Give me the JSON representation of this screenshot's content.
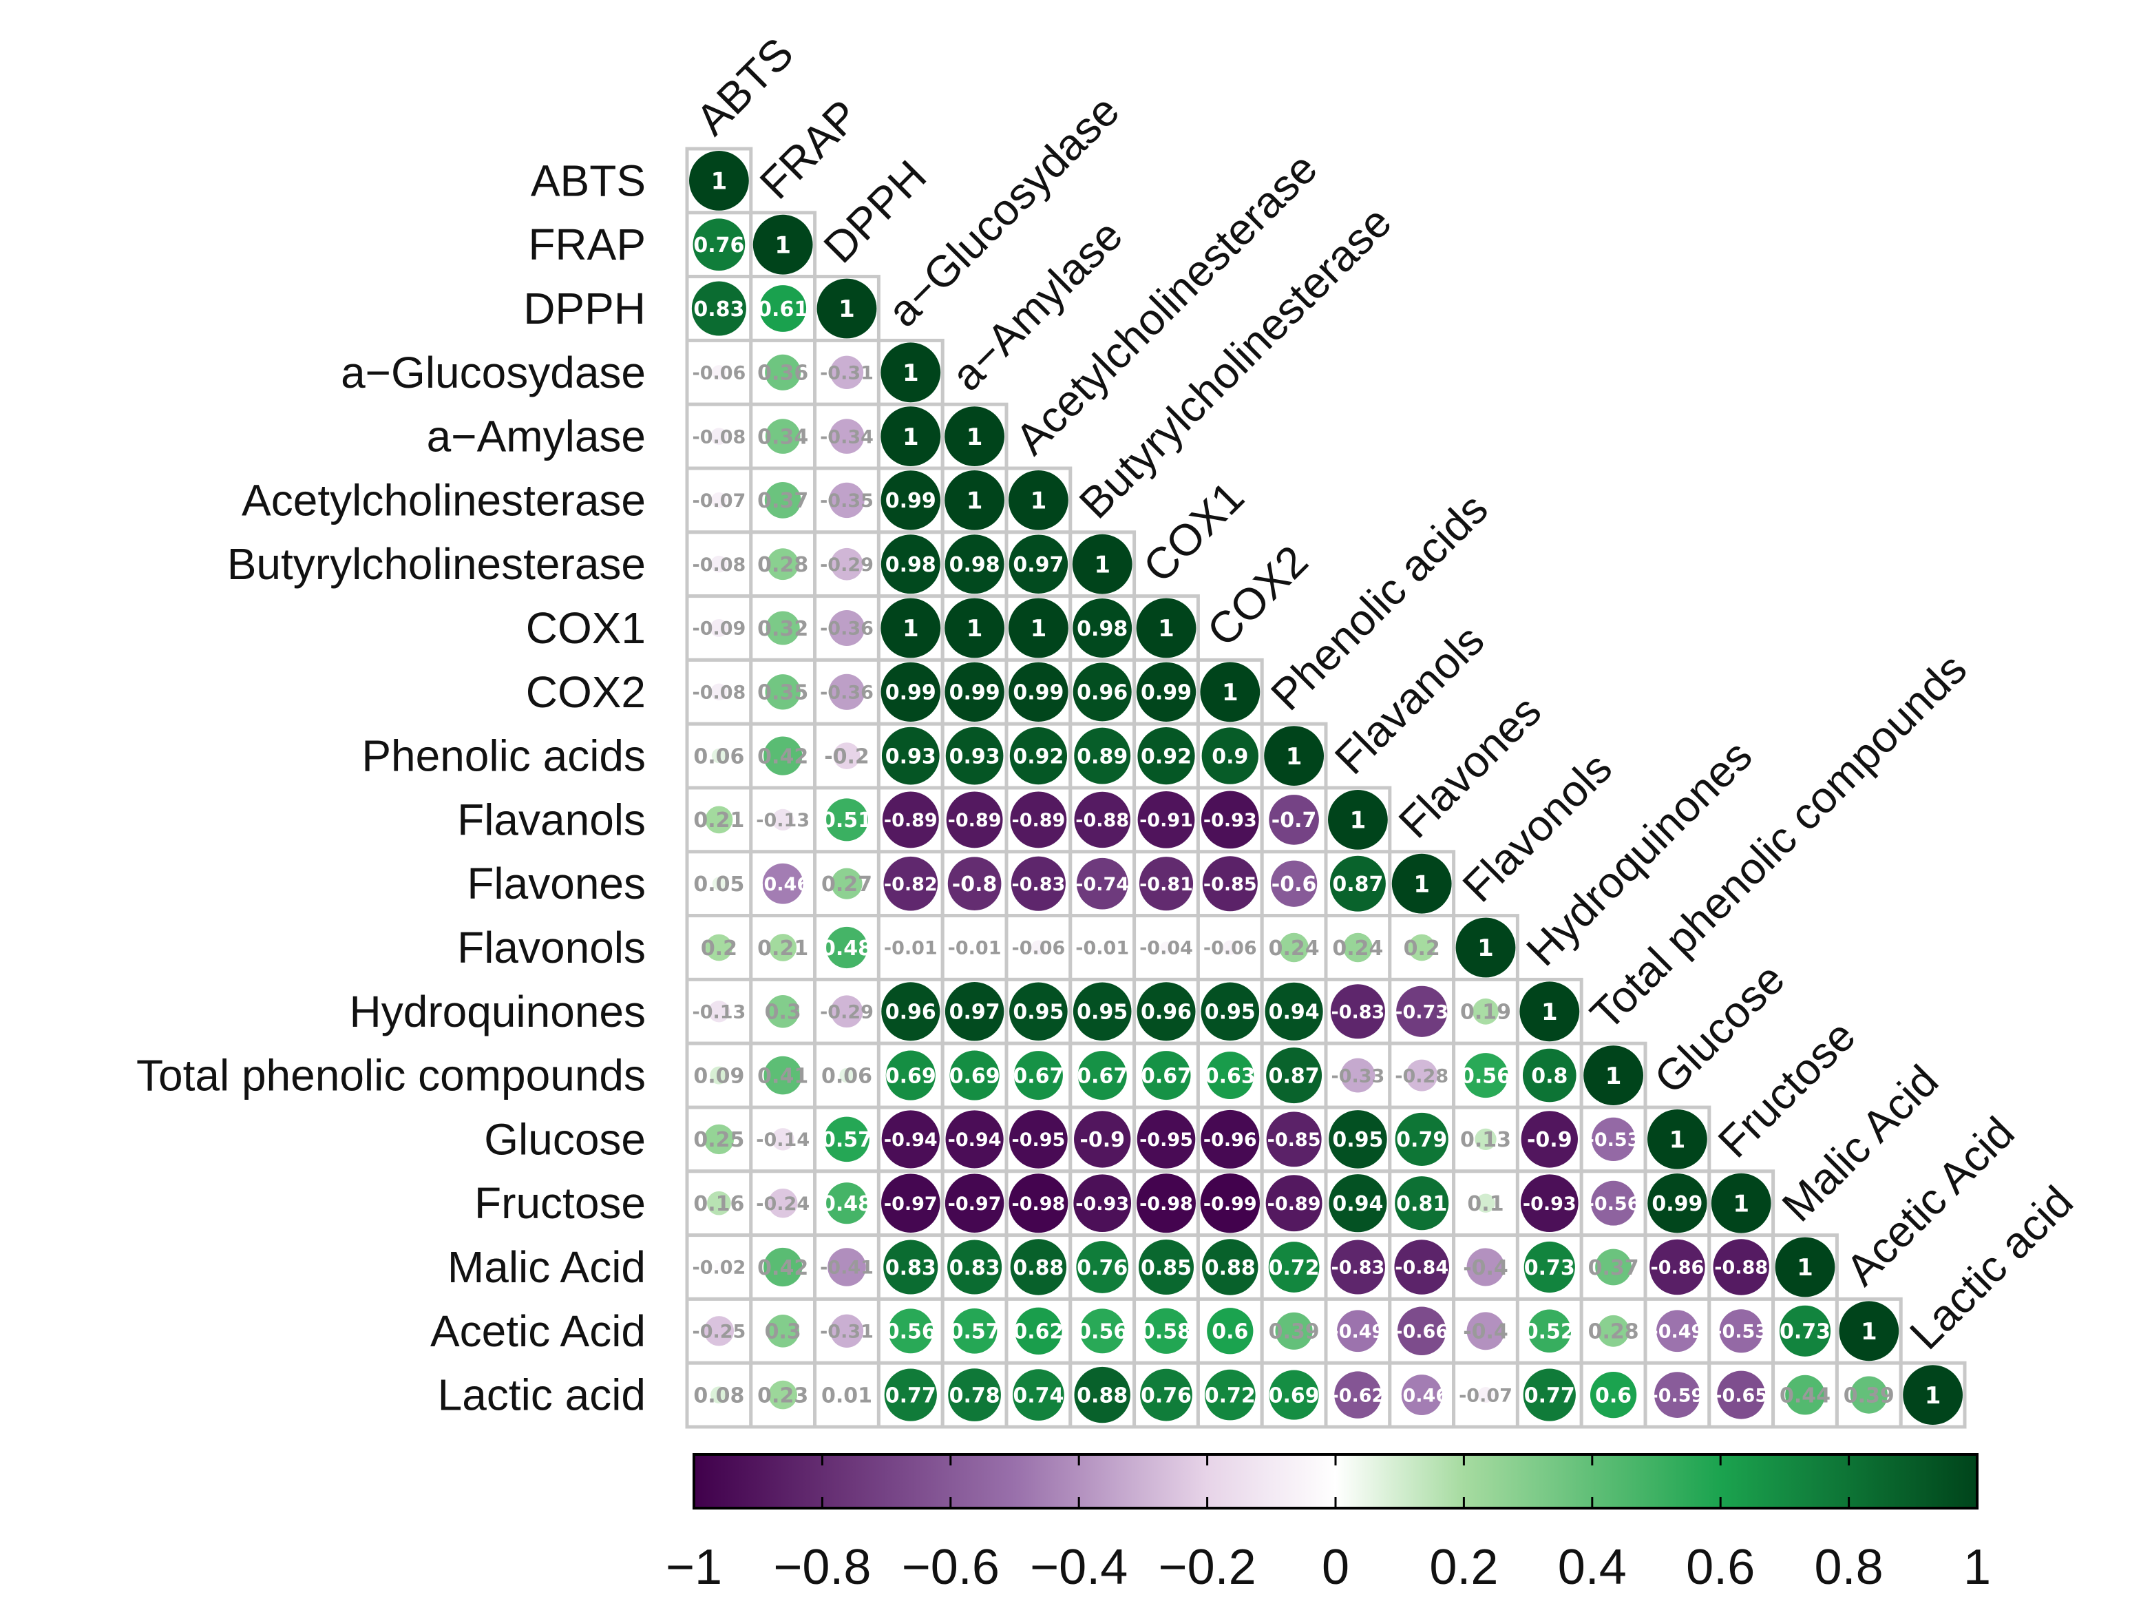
{
  "chart_data": {
    "type": "heatmap",
    "subtype": "correlation-matrix-lower-triangle",
    "variables": [
      "ABTS",
      "FRAP",
      "DPPH",
      "a−Glucosydase",
      "a−Amylase",
      "Acetylcholinesterase",
      "Butyrylcholinesterase",
      "COX1",
      "COX2",
      "Phenolic acids",
      "Flavanols",
      "Flavones",
      "Flavonols",
      "Hydroquinones",
      "Total phenolic compounds",
      "Glucose",
      "Fructose",
      "Malic Acid",
      "Acetic Acid",
      "Lactic acid"
    ],
    "lower_triangle": [
      [
        1
      ],
      [
        0.76,
        1
      ],
      [
        0.83,
        0.61,
        1
      ],
      [
        -0.06,
        0.36,
        -0.31,
        1
      ],
      [
        -0.08,
        0.34,
        -0.34,
        1,
        1
      ],
      [
        -0.07,
        0.37,
        -0.35,
        0.99,
        1,
        1
      ],
      [
        -0.08,
        0.28,
        -0.29,
        0.98,
        0.98,
        0.97,
        1
      ],
      [
        -0.09,
        0.32,
        -0.36,
        1,
        1,
        1,
        0.98,
        1
      ],
      [
        -0.08,
        0.35,
        -0.36,
        0.99,
        0.99,
        0.99,
        0.96,
        0.99,
        1
      ],
      [
        0.06,
        0.42,
        -0.2,
        0.93,
        0.93,
        0.92,
        0.89,
        0.92,
        0.9,
        1
      ],
      [
        0.21,
        -0.13,
        0.51,
        -0.89,
        -0.89,
        -0.89,
        -0.88,
        -0.91,
        -0.93,
        -0.7,
        1
      ],
      [
        0.05,
        -0.46,
        0.27,
        -0.82,
        -0.8,
        -0.83,
        -0.74,
        -0.81,
        -0.85,
        -0.6,
        0.87,
        1
      ],
      [
        0.2,
        0.21,
        0.48,
        -0.01,
        -0.01,
        -0.06,
        -0.01,
        -0.04,
        -0.06,
        0.24,
        0.24,
        0.2,
        1
      ],
      [
        -0.13,
        0.3,
        -0.29,
        0.96,
        0.97,
        0.95,
        0.95,
        0.96,
        0.95,
        0.94,
        -0.83,
        -0.73,
        0.19,
        1
      ],
      [
        0.09,
        0.41,
        0.06,
        0.69,
        0.69,
        0.67,
        0.67,
        0.67,
        0.63,
        0.87,
        -0.33,
        -0.28,
        0.56,
        0.8,
        1
      ],
      [
        0.25,
        -0.14,
        0.57,
        -0.94,
        -0.94,
        -0.95,
        -0.9,
        -0.95,
        -0.96,
        -0.85,
        0.95,
        0.79,
        0.13,
        -0.9,
        -0.53,
        1
      ],
      [
        0.16,
        -0.24,
        0.48,
        -0.97,
        -0.97,
        -0.98,
        -0.93,
        -0.98,
        -0.99,
        -0.89,
        0.94,
        0.81,
        0.1,
        -0.93,
        -0.56,
        0.99,
        1
      ],
      [
        -0.02,
        0.42,
        -0.41,
        0.83,
        0.83,
        0.88,
        0.76,
        0.85,
        0.88,
        0.72,
        -0.83,
        -0.84,
        -0.4,
        0.73,
        0.37,
        -0.86,
        -0.88,
        1
      ],
      [
        -0.25,
        0.3,
        -0.31,
        0.56,
        0.57,
        0.62,
        0.56,
        0.58,
        0.6,
        0.39,
        -0.49,
        -0.66,
        -0.4,
        0.52,
        0.28,
        -0.49,
        -0.53,
        0.73,
        1
      ],
      [
        0.08,
        0.23,
        0.01,
        0.77,
        0.78,
        0.74,
        0.88,
        0.76,
        0.72,
        0.69,
        -0.62,
        -0.46,
        -0.07,
        0.77,
        0.6,
        -0.59,
        -0.65,
        0.44,
        0.39,
        1
      ]
    ],
    "value_labels": [
      [
        "1"
      ],
      [
        "0.76",
        "1"
      ],
      [
        "0.83",
        "0.61",
        "1"
      ],
      [
        "-0.06",
        "0.36",
        "-0.31",
        "1"
      ],
      [
        "-0.08",
        "0.34",
        "-0.34",
        "1",
        "1"
      ],
      [
        "-0.07",
        "0.37",
        "-0.35",
        "0.99",
        "1",
        "1"
      ],
      [
        "-0.08",
        "0.28",
        "-0.29",
        "0.98",
        "0.98",
        "0.97",
        "1"
      ],
      [
        "-0.09",
        "0.32",
        "-0.36",
        "1",
        "1",
        "1",
        "0.98",
        "1"
      ],
      [
        "-0.08",
        "0.35",
        "-0.36",
        "0.99",
        "0.99",
        "0.99",
        "0.96",
        "0.99",
        "1"
      ],
      [
        "0.06",
        "0.42",
        "-0.2",
        "0.93",
        "0.93",
        "0.92",
        "0.89",
        "0.92",
        "0.9",
        "1"
      ],
      [
        "0.21",
        "-0.13",
        "0.51",
        "-0.89",
        "-0.89",
        "-0.89",
        "-0.88",
        "-0.91",
        "-0.93",
        "-0.7",
        "1"
      ],
      [
        "0.05",
        "-0.46",
        "0.27",
        "-0.82",
        "-0.8",
        "-0.83",
        "-0.74",
        "-0.81",
        "-0.85",
        "-0.6",
        "0.87",
        "1"
      ],
      [
        "0.2",
        "0.21",
        "0.48",
        "-0.01",
        "-0.01",
        "-0.06",
        "-0.01",
        "-0.04",
        "-0.06",
        "0.24",
        "0.24",
        "0.2",
        "1"
      ],
      [
        "-0.13",
        "0.3",
        "-0.29",
        "0.96",
        "0.97",
        "0.95",
        "0.95",
        "0.96",
        "0.95",
        "0.94",
        "-0.83",
        "-0.73",
        "0.19",
        "1"
      ],
      [
        "0.09",
        "0.41",
        "0.06",
        "0.69",
        "0.69",
        "0.67",
        "0.67",
        "0.67",
        "0.63",
        "0.87",
        "-0.33",
        "-0.28",
        "0.56",
        "0.8",
        "1"
      ],
      [
        "0.25",
        "-0.14",
        "0.57",
        "-0.94",
        "-0.94",
        "-0.95",
        "-0.9",
        "-0.95",
        "-0.96",
        "-0.85",
        "0.95",
        "0.79",
        "0.13",
        "-0.9",
        "-0.53",
        "1"
      ],
      [
        "0.16",
        "-0.24",
        "0.48",
        "-0.97",
        "-0.97",
        "-0.98",
        "-0.93",
        "-0.98",
        "-0.99",
        "-0.89",
        "0.94",
        "0.81",
        "0.1",
        "-0.93",
        "-0.56",
        "0.99",
        "1"
      ],
      [
        "-0.02",
        "0.42",
        "-0.41",
        "0.83",
        "0.83",
        "0.88",
        "0.76",
        "0.85",
        "0.88",
        "0.72",
        "-0.83",
        "-0.84",
        "-0.4",
        "0.73",
        "0.37",
        "-0.86",
        "-0.88",
        "1"
      ],
      [
        "-0.25",
        "0.3",
        "-0.31",
        "0.56",
        "0.57",
        "0.62",
        "0.56",
        "0.58",
        "0.6",
        "0.39",
        "-0.49",
        "-0.66",
        "-0.4",
        "0.52",
        "0.28",
        "-0.49",
        "-0.53",
        "0.73",
        "1"
      ],
      [
        "0.08",
        "0.23",
        "0.01",
        "0.77",
        "0.78",
        "0.74",
        "0.88",
        "0.76",
        "0.72",
        "0.69",
        "-0.62",
        "-0.46",
        "-0.07",
        "0.77",
        "0.6",
        "-0.59",
        "-0.65",
        "0.44",
        "0.39",
        "1"
      ]
    ],
    "colorbar": {
      "range": [
        -1,
        1
      ],
      "tick_values": [
        -1,
        -0.8,
        -0.6,
        -0.4,
        -0.2,
        0,
        0.2,
        0.4,
        0.6,
        0.8,
        1
      ],
      "tick_labels": [
        "−1",
        "−0.8",
        "−0.6",
        "−0.4",
        "−0.2",
        "0",
        "0.2",
        "0.4",
        "0.6",
        "0.8",
        "1"
      ],
      "orientation": "horizontal",
      "placement": "bottom"
    },
    "colors": {
      "negative_extreme": "#40004b",
      "negative_mid": "#9970ab",
      "negative_light": "#e7d4e8",
      "zero": "#ffffff",
      "positive_light": "#a6dba0",
      "positive_mid": "#1ba34f",
      "positive_extreme": "#00441b",
      "grid_line": "#c8c8c8",
      "value_text_strong": "#ffffff",
      "value_text_weak": "#9a9a9a"
    },
    "glyph": "circle",
    "circle_size_scales_with_abs_value": true,
    "title": "",
    "xlabel": "",
    "ylabel": ""
  }
}
